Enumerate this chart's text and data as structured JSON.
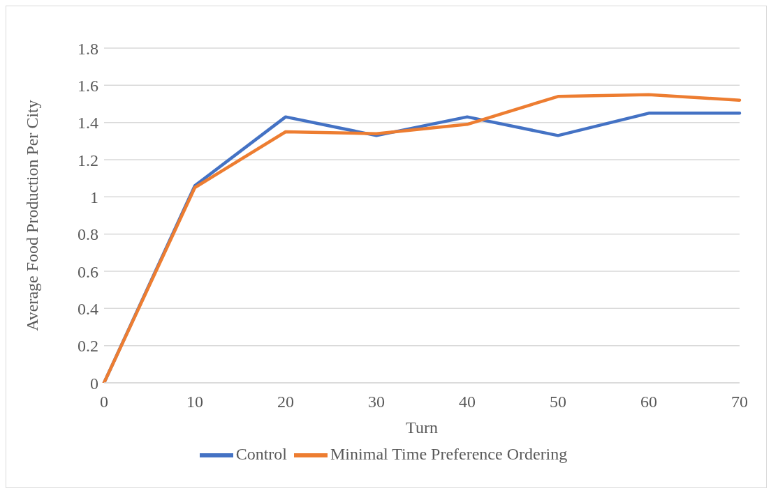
{
  "chart_data": {
    "type": "line",
    "xlabel": "Turn",
    "ylabel": "Average Food Production Per City",
    "categories": [
      "0",
      "10",
      "20",
      "30",
      "40",
      "50",
      "60",
      "70"
    ],
    "series": [
      {
        "name": "Control",
        "color": "#4472c4",
        "values": [
          0,
          1.06,
          1.43,
          1.33,
          1.43,
          1.33,
          1.45,
          1.45
        ]
      },
      {
        "name": "Minimal Time Preference Ordering",
        "color": "#ed7d31",
        "values": [
          0,
          1.05,
          1.35,
          1.34,
          1.39,
          1.54,
          1.55,
          1.52
        ]
      }
    ],
    "ylim": [
      0,
      1.8
    ],
    "yticks": [
      0,
      0.2,
      0.4,
      0.6,
      0.8,
      1,
      1.2,
      1.4,
      1.6,
      1.8
    ],
    "grid": "y",
    "legend": "bottom",
    "marker": "none",
    "line_style": "solid"
  }
}
